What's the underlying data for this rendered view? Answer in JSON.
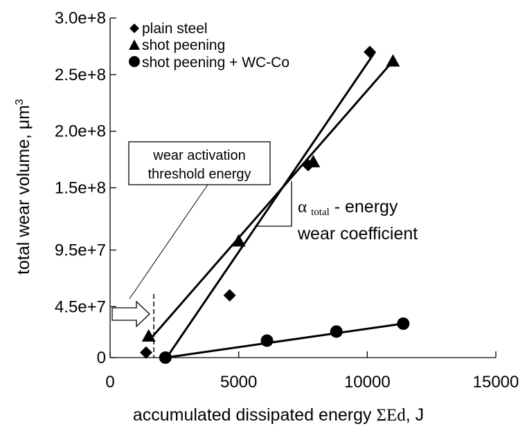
{
  "chart_data": {
    "type": "scatter",
    "title": "",
    "xlabel_prefix": "accumulated dissipated energy ",
    "xlabel_symbol": "ΣEd",
    "xlabel_suffix": ", J",
    "ylabel_main": "total wear volume, μm",
    "ylabel_sup": "3",
    "xlim": [
      0,
      15000
    ],
    "ylim": [
      0,
      300000000
    ],
    "x_ticks": [
      0,
      5000,
      10000,
      15000
    ],
    "x_tick_labels": [
      "0",
      "5000",
      "10000",
      "15000"
    ],
    "y_ticks": [
      0,
      45000000,
      95000000,
      150000000,
      200000000,
      250000000,
      300000000
    ],
    "y_tick_labels": [
      "0",
      "4.5e+7",
      "9.5e+7",
      "1.5e+8",
      "2.0e+8",
      "2.5e+8",
      "3.0e+8"
    ],
    "grid": false,
    "legend_position": "top-left",
    "series": [
      {
        "name": "plain steel",
        "marker": "diamond",
        "x": [
          1400,
          4650,
          7700,
          10100
        ],
        "y": [
          4500000,
          55000000,
          170000000,
          270000000
        ],
        "fit": [
          [
            2200,
            0
          ],
          [
            10300,
            270000000
          ]
        ]
      },
      {
        "name": "shot peening",
        "marker": "triangle",
        "x": [
          1500,
          5000,
          7900,
          11000
        ],
        "y": [
          19000000,
          103000000,
          173000000,
          262000000
        ],
        "fit": [
          [
            1550,
            16000000
          ],
          [
            11000,
            262000000
          ]
        ]
      },
      {
        "name": "shot peening + WC-Co",
        "marker": "circle",
        "x": [
          2150,
          6100,
          8800,
          11400
        ],
        "y": [
          0,
          15000000,
          23000000,
          30000000
        ],
        "fit": [
          [
            2150,
            0
          ],
          [
            11400,
            30000000
          ]
        ]
      }
    ],
    "annotations": {
      "threshold_line1": "wear activation",
      "threshold_line2": "threshold energy",
      "threshold_x": 1700,
      "coef_alpha": "α",
      "coef_sub": "total",
      "coef_line1_rest": " - energy",
      "coef_line2": "wear coefficient"
    }
  }
}
